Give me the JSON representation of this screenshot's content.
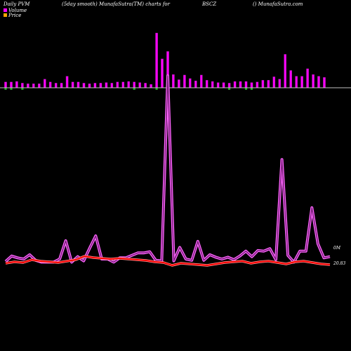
{
  "header": {
    "left": "Daily PVM",
    "mid": "(5day smooth) MunafaSutra(TM) charts for",
    "symbol": "BSCZ",
    "right": "() MunafaSutra.com"
  },
  "legend": [
    {
      "label": "Volume",
      "color": "#ff00ff"
    },
    {
      "label": "Price",
      "color": "#ffa500"
    }
  ],
  "value_labels": {
    "volume_last": "0M",
    "price_last": "20.83"
  },
  "colors": {
    "background": "#000000",
    "volume_up": "#ff00ff",
    "volume_down": "#22aa22",
    "price": "#ff0000",
    "smooth_line": "#ff66ff",
    "baseline": "#c0c0c0"
  },
  "chart_data": {
    "type": "bar",
    "volume_bars": {
      "values": [
        1.0,
        1.0,
        1.1,
        0.8,
        0.7,
        0.7,
        0.7,
        1.5,
        1.0,
        0.8,
        0.8,
        2.0,
        1.0,
        1.0,
        0.8,
        0.7,
        0.8,
        0.8,
        0.9,
        0.8,
        1.0,
        1.0,
        1.1,
        1.0,
        0.9,
        0.8,
        0.6,
        9.5,
        5.0,
        6.3,
        2.3,
        1.4,
        2.2,
        1.6,
        1.2,
        2.2,
        1.3,
        1.1,
        0.9,
        0.9,
        0.8,
        1.1,
        1.1,
        1.1,
        0.9,
        1.0,
        1.3,
        1.3,
        1.9,
        1.5,
        5.8,
        3.0,
        2.0,
        2.0,
        3.3,
        2.3,
        2.0,
        1.8
      ],
      "down_days": [
        0,
        1,
        3,
        23,
        27,
        29,
        40,
        43,
        44
      ]
    },
    "smoothed_volume": [
      0.4,
      1.3,
      1.0,
      0.8,
      1.5,
      0.6,
      0.3,
      0.3,
      0.3,
      0.8,
      3.8,
      0.3,
      1.2,
      0.5,
      2.6,
      4.6,
      0.8,
      0.8,
      0.3,
      1.0,
      1.0,
      1.4,
      1.8,
      1.8,
      2.0,
      0.6,
      0.5,
      30.8,
      0.5,
      2.7,
      0.8,
      0.6,
      3.7,
      0.6,
      1.5,
      1.1,
      0.8,
      1.1,
      0.7,
      1.3,
      2.1,
      1.2,
      2.2,
      2.1,
      2.5,
      0.7,
      17.1,
      1.4,
      0.3,
      2.1,
      2.1,
      9.2,
      3.3,
      1.0,
      1.2
    ],
    "price": [
      20.85,
      20.87,
      20.86,
      20.9,
      20.88,
      20.87,
      20.86,
      20.88,
      20.9,
      20.95,
      20.93,
      20.92,
      20.91,
      20.92,
      20.91,
      20.9,
      20.89,
      20.87,
      20.86,
      20.82,
      20.85,
      20.84,
      20.83,
      20.82,
      20.84,
      20.86,
      20.87,
      20.88,
      20.85,
      20.87,
      20.88,
      20.86,
      20.84,
      20.87,
      20.88,
      20.86,
      20.84,
      20.83
    ],
    "price_last": 20.83,
    "volume_last": "0M",
    "ylim_volume_smooth": [
      0,
      32
    ],
    "ylim_price": [
      20.6,
      21.2
    ]
  }
}
